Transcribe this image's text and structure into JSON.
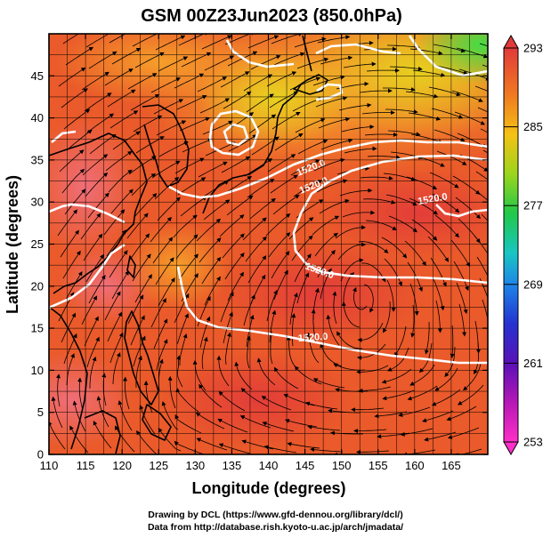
{
  "title": "GSM 00Z23Jun2023 (850.0hPa)",
  "x_axis": {
    "label": "Longitude (degrees)",
    "ticks": [
      "110",
      "115",
      "120",
      "125",
      "130",
      "135",
      "140",
      "145",
      "150",
      "155",
      "160",
      "165"
    ]
  },
  "y_axis": {
    "label": "Latitude  (degrees)",
    "ticks": [
      "0",
      "5",
      "10",
      "15",
      "20",
      "25",
      "30",
      "35",
      "40",
      "45"
    ]
  },
  "colorbar": {
    "ticks": [
      "293",
      "285",
      "277",
      "269",
      "261",
      "253"
    ],
    "colors": [
      "#e23a3a",
      "#f07a20",
      "#f5c215",
      "#9ad51c",
      "#21c84a",
      "#19c6c2",
      "#1e86e8",
      "#2432d0",
      "#5a11b8",
      "#b618b6",
      "#ff2fc8"
    ]
  },
  "contour_labels": [
    "1520.0",
    "1520.0",
    "1520.0",
    "1520.0",
    "1520.0"
  ],
  "credits": {
    "line1": "Drawing by DCL (https://www.gfd-dennou.org/library/dcl/)",
    "line2": "Data from http://database.rish.kyoto-u.ac.jp/arch/jmadata/"
  },
  "chart_data": {
    "type": "heatmap",
    "title": "GSM 00Z23Jun2023 (850.0hPa)",
    "xlabel": "Longitude (degrees)",
    "ylabel": "Latitude  (degrees)",
    "xlim": [
      110,
      170
    ],
    "ylim": [
      0,
      50
    ],
    "colorbar_range": [
      253,
      293
    ],
    "overlays": [
      "temperature shading",
      "wind streamlines",
      "geopotential height contours (white)",
      "coastlines (black)"
    ],
    "contour_value": 1520.0
  }
}
